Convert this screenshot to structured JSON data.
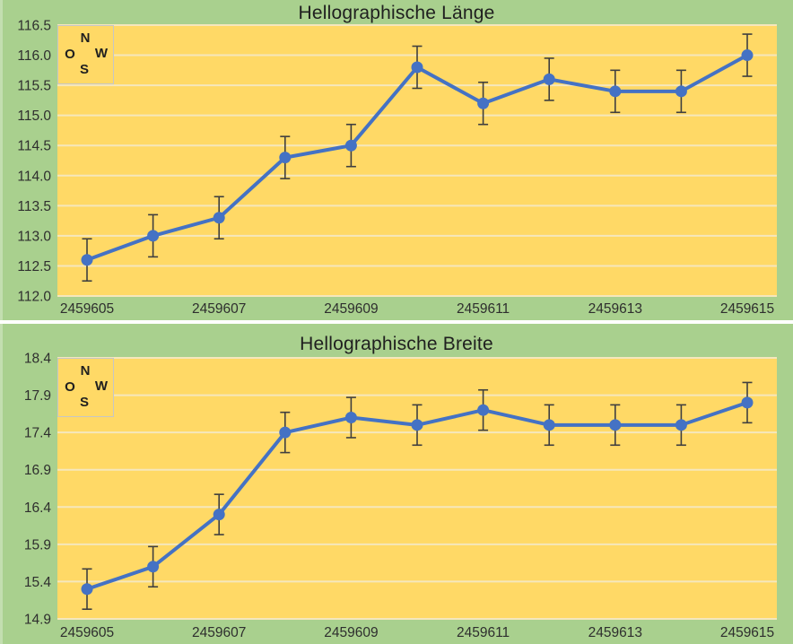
{
  "page": {
    "background": "#FFFFFF"
  },
  "colors": {
    "panel_green": "#A9D08E",
    "plot_gold": "#FFD966",
    "gridline": "#F5E7BC",
    "series_blue": "#4472C4",
    "error_bar": "#3F3F3F",
    "tick_text": "#2E2E2E",
    "title_text": "#1F1F1F",
    "legend_border": "#C6C6C6"
  },
  "chart_data": [
    {
      "type": "line",
      "title": "Hellographische Länge",
      "x": [
        2459605,
        2459606,
        2459607,
        2459608,
        2459609,
        2459610,
        2459611,
        2459612,
        2459613,
        2459614,
        2459615
      ],
      "series": [
        {
          "name": "Hellographische Länge",
          "values": [
            112.6,
            113.0,
            113.3,
            114.3,
            114.5,
            115.8,
            115.2,
            115.6,
            115.4,
            115.4,
            116.0
          ],
          "error": 0.35
        }
      ],
      "xtick_labels": [
        "2459605",
        "2459607",
        "2459609",
        "2459611",
        "2459613",
        "2459615"
      ],
      "ytick_values": [
        116.5,
        116.0,
        115.5,
        115.0,
        114.5,
        114.0,
        113.5,
        113.0,
        112.5,
        112.0
      ],
      "ytick_labels": [
        "116.5",
        "116.0",
        "115.5",
        "115.0",
        "114.5",
        "114.0",
        "113.5",
        "113.0",
        "112.5",
        "112.0"
      ],
      "ylim": [
        112.0,
        116.5
      ],
      "grid": true,
      "legend_position": "top-left",
      "compass": {
        "n": "N",
        "o": "O",
        "w": "W",
        "s": "S"
      }
    },
    {
      "type": "line",
      "title": "Hellographische Breite",
      "x": [
        2459605,
        2459606,
        2459607,
        2459608,
        2459609,
        2459610,
        2459611,
        2459612,
        2459613,
        2459614,
        2459615
      ],
      "series": [
        {
          "name": "Hellographische Breite",
          "values": [
            15.3,
            15.6,
            16.3,
            17.4,
            17.6,
            17.5,
            17.7,
            17.5,
            17.5,
            17.5,
            17.8
          ],
          "error": 0.27
        }
      ],
      "xtick_labels": [
        "2459605",
        "2459607",
        "2459609",
        "2459611",
        "2459613",
        "2459615"
      ],
      "ytick_values": [
        18.4,
        17.9,
        17.4,
        16.9,
        16.4,
        15.9,
        15.4,
        14.9
      ],
      "ytick_labels": [
        "18.4",
        "17.9",
        "17.4",
        "16.9",
        "16.4",
        "15.9",
        "15.4",
        "14.9"
      ],
      "ylim": [
        14.9,
        18.4
      ],
      "grid": true,
      "legend_position": "top-left",
      "compass": {
        "n": "N",
        "o": "O",
        "w": "W",
        "s": "S"
      }
    }
  ]
}
